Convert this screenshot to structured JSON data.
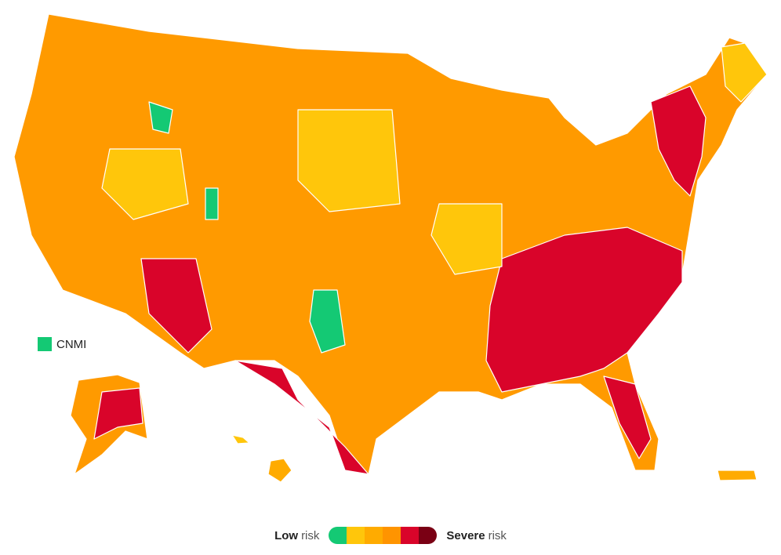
{
  "legend": {
    "low": "Low",
    "low_suffix": "risk",
    "high": "Severe",
    "high_suffix": "risk",
    "colors": [
      "#14c974",
      "#ffc60b",
      "#ffab00",
      "#ff9400",
      "#d9042a",
      "#7a0014"
    ]
  },
  "cnmi": {
    "label": "CNMI",
    "color": "#14c974"
  }
}
